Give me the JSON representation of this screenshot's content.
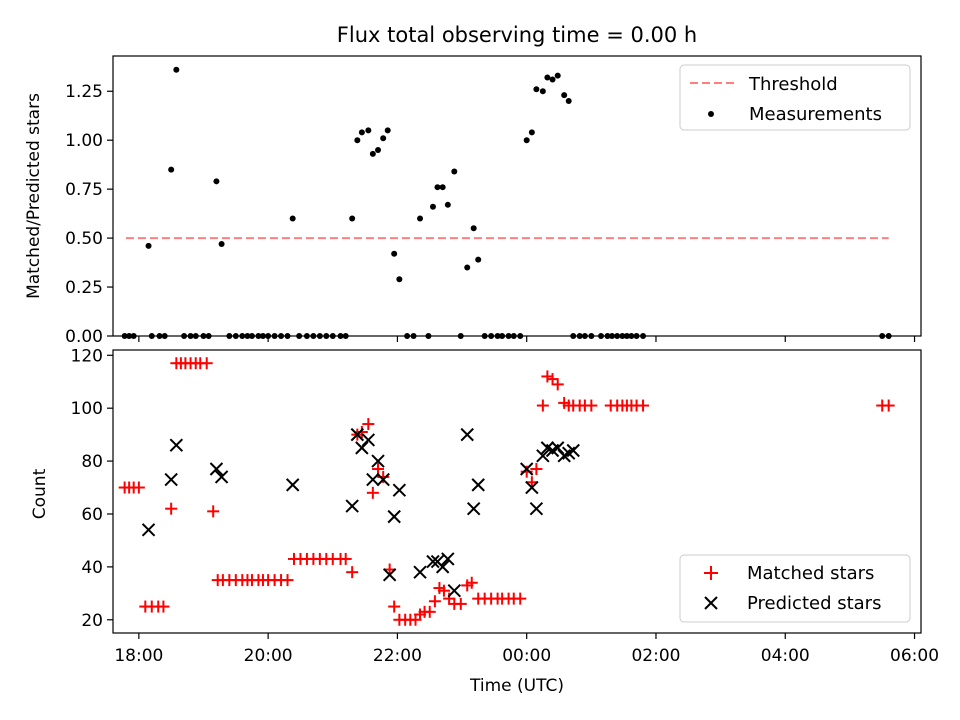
{
  "chart_data": [
    {
      "type": "scatter",
      "title": "Flux total observing time = 0.00 h",
      "xlabel": "",
      "ylabel": "Matched/Predicted stars",
      "ylim": [
        0,
        1.43
      ],
      "yticks": [
        0.0,
        0.25,
        0.5,
        0.75,
        1.0,
        1.25
      ],
      "ytick_labels": [
        "0.00",
        "0.25",
        "0.50",
        "0.75",
        "1.00",
        "1.25"
      ],
      "xlim": [
        17.6,
        30.1
      ],
      "legend": {
        "placement": "top-right",
        "entries": [
          "Threshold",
          "Measurements"
        ]
      },
      "threshold": {
        "name": "Threshold",
        "value": 0.5,
        "x_start": 17.8,
        "x_end": 29.6,
        "color": "#ff7f7f"
      },
      "measurements": {
        "name": "Measurements",
        "color": "#000000",
        "points": [
          [
            17.78,
            0
          ],
          [
            17.85,
            0
          ],
          [
            17.92,
            0
          ],
          [
            18.15,
            0.46
          ],
          [
            18.2,
            0
          ],
          [
            18.32,
            0
          ],
          [
            18.4,
            0
          ],
          [
            18.5,
            0.85
          ],
          [
            18.58,
            1.36
          ],
          [
            18.7,
            0
          ],
          [
            18.8,
            0
          ],
          [
            18.88,
            0
          ],
          [
            19.0,
            0
          ],
          [
            19.08,
            0
          ],
          [
            19.2,
            0.79
          ],
          [
            19.28,
            0.47
          ],
          [
            19.4,
            0
          ],
          [
            19.5,
            0
          ],
          [
            19.6,
            0
          ],
          [
            19.68,
            0
          ],
          [
            19.75,
            0
          ],
          [
            19.85,
            0
          ],
          [
            19.92,
            0
          ],
          [
            20.0,
            0
          ],
          [
            20.1,
            0
          ],
          [
            20.2,
            0
          ],
          [
            20.3,
            0
          ],
          [
            20.38,
            0.6
          ],
          [
            20.48,
            0
          ],
          [
            20.6,
            0
          ],
          [
            20.7,
            0
          ],
          [
            20.8,
            0
          ],
          [
            20.9,
            0
          ],
          [
            21.0,
            0
          ],
          [
            21.12,
            0
          ],
          [
            21.2,
            0
          ],
          [
            21.3,
            0.6
          ],
          [
            21.38,
            1.0
          ],
          [
            21.45,
            1.04
          ],
          [
            21.55,
            1.05
          ],
          [
            21.62,
            0.93
          ],
          [
            21.7,
            0.95
          ],
          [
            21.78,
            1.01
          ],
          [
            21.85,
            1.05
          ],
          [
            21.95,
            0.42
          ],
          [
            22.03,
            0.29
          ],
          [
            22.15,
            0
          ],
          [
            22.25,
            0
          ],
          [
            22.35,
            0.6
          ],
          [
            22.48,
            0
          ],
          [
            22.55,
            0.66
          ],
          [
            22.62,
            0.76
          ],
          [
            22.7,
            0.76
          ],
          [
            22.78,
            0.67
          ],
          [
            22.88,
            0.84
          ],
          [
            22.98,
            0
          ],
          [
            23.08,
            0.35
          ],
          [
            23.18,
            0.55
          ],
          [
            23.25,
            0.39
          ],
          [
            23.35,
            0
          ],
          [
            23.45,
            0
          ],
          [
            23.55,
            0
          ],
          [
            23.62,
            0
          ],
          [
            23.72,
            0
          ],
          [
            23.8,
            0
          ],
          [
            23.9,
            0
          ],
          [
            24.0,
            1.0
          ],
          [
            24.08,
            1.04
          ],
          [
            24.15,
            1.26
          ],
          [
            24.25,
            1.25
          ],
          [
            24.32,
            1.32
          ],
          [
            24.4,
            1.31
          ],
          [
            24.48,
            1.33
          ],
          [
            24.58,
            1.23
          ],
          [
            24.65,
            1.2
          ],
          [
            24.72,
            0
          ],
          [
            24.82,
            0
          ],
          [
            24.9,
            0
          ],
          [
            25.0,
            0
          ],
          [
            25.15,
            0
          ],
          [
            25.25,
            0
          ],
          [
            25.32,
            0
          ],
          [
            25.4,
            0
          ],
          [
            25.48,
            0
          ],
          [
            25.55,
            0
          ],
          [
            25.62,
            0
          ],
          [
            25.7,
            0
          ],
          [
            25.8,
            0
          ],
          [
            29.5,
            0
          ],
          [
            29.6,
            0
          ]
        ]
      }
    },
    {
      "type": "scatter",
      "title": "",
      "xlabel": "Time (UTC)",
      "ylabel": "Count",
      "ylim": [
        15,
        122
      ],
      "yticks": [
        20,
        40,
        60,
        80,
        100,
        120
      ],
      "ytick_labels": [
        "20",
        "40",
        "60",
        "80",
        "100",
        "120"
      ],
      "xlim": [
        17.6,
        30.1
      ],
      "xticks": [
        18,
        20,
        22,
        24,
        26,
        28,
        30
      ],
      "xtick_labels": [
        "18:00",
        "20:00",
        "22:00",
        "00:00",
        "02:00",
        "04:00",
        "06:00"
      ],
      "legend": {
        "placement": "bottom-right",
        "entries": [
          "Matched stars",
          "Predicted stars"
        ]
      },
      "series": [
        {
          "name": "Matched stars",
          "marker": "plus",
          "color": "#ff0000",
          "points": [
            [
              17.78,
              70
            ],
            [
              17.85,
              70
            ],
            [
              17.92,
              70
            ],
            [
              18.0,
              70
            ],
            [
              18.1,
              25
            ],
            [
              18.2,
              25
            ],
            [
              18.3,
              25
            ],
            [
              18.38,
              25
            ],
            [
              18.5,
              62
            ],
            [
              18.58,
              117
            ],
            [
              18.65,
              117
            ],
            [
              18.72,
              117
            ],
            [
              18.8,
              117
            ],
            [
              18.88,
              117
            ],
            [
              18.95,
              117
            ],
            [
              19.05,
              117
            ],
            [
              19.15,
              61
            ],
            [
              19.22,
              35
            ],
            [
              19.3,
              35
            ],
            [
              19.4,
              35
            ],
            [
              19.5,
              35
            ],
            [
              19.6,
              35
            ],
            [
              19.68,
              35
            ],
            [
              19.75,
              35
            ],
            [
              19.85,
              35
            ],
            [
              19.92,
              35
            ],
            [
              20.0,
              35
            ],
            [
              20.1,
              35
            ],
            [
              20.2,
              35
            ],
            [
              20.3,
              35
            ],
            [
              20.4,
              43
            ],
            [
              20.5,
              43
            ],
            [
              20.6,
              43
            ],
            [
              20.7,
              43
            ],
            [
              20.8,
              43
            ],
            [
              20.9,
              43
            ],
            [
              21.0,
              43
            ],
            [
              21.12,
              43
            ],
            [
              21.2,
              43
            ],
            [
              21.3,
              38
            ],
            [
              21.38,
              90
            ],
            [
              21.45,
              91
            ],
            [
              21.55,
              94
            ],
            [
              21.62,
              68
            ],
            [
              21.7,
              77
            ],
            [
              21.78,
              74
            ],
            [
              21.88,
              39
            ],
            [
              21.95,
              25
            ],
            [
              22.03,
              20
            ],
            [
              22.12,
              20
            ],
            [
              22.2,
              20
            ],
            [
              22.28,
              20
            ],
            [
              22.35,
              22
            ],
            [
              22.42,
              23
            ],
            [
              22.5,
              23
            ],
            [
              22.58,
              27
            ],
            [
              22.65,
              32
            ],
            [
              22.72,
              31
            ],
            [
              22.8,
              28
            ],
            [
              22.88,
              26
            ],
            [
              22.98,
              26
            ],
            [
              23.08,
              33
            ],
            [
              23.15,
              34
            ],
            [
              23.25,
              28
            ],
            [
              23.35,
              28
            ],
            [
              23.45,
              28
            ],
            [
              23.55,
              28
            ],
            [
              23.62,
              28
            ],
            [
              23.72,
              28
            ],
            [
              23.8,
              28
            ],
            [
              23.9,
              28
            ],
            [
              24.0,
              76
            ],
            [
              24.08,
              72
            ],
            [
              24.15,
              77
            ],
            [
              24.25,
              101
            ],
            [
              24.32,
              112
            ],
            [
              24.4,
              111
            ],
            [
              24.48,
              109
            ],
            [
              24.58,
              102
            ],
            [
              24.65,
              101
            ],
            [
              24.72,
              101
            ],
            [
              24.82,
              101
            ],
            [
              24.9,
              101
            ],
            [
              25.0,
              101
            ],
            [
              25.3,
              101
            ],
            [
              25.4,
              101
            ],
            [
              25.48,
              101
            ],
            [
              25.55,
              101
            ],
            [
              25.62,
              101
            ],
            [
              25.7,
              101
            ],
            [
              25.8,
              101
            ],
            [
              29.5,
              101
            ],
            [
              29.6,
              101
            ]
          ]
        },
        {
          "name": "Predicted stars",
          "marker": "x",
          "color": "#000000",
          "points": [
            [
              18.15,
              54
            ],
            [
              18.5,
              73
            ],
            [
              18.58,
              86
            ],
            [
              19.2,
              77
            ],
            [
              19.28,
              74
            ],
            [
              20.38,
              71
            ],
            [
              21.3,
              63
            ],
            [
              21.38,
              90
            ],
            [
              21.45,
              85
            ],
            [
              21.55,
              88
            ],
            [
              21.62,
              73
            ],
            [
              21.7,
              80
            ],
            [
              21.78,
              73
            ],
            [
              21.88,
              37
            ],
            [
              21.95,
              59
            ],
            [
              22.03,
              69
            ],
            [
              22.35,
              38
            ],
            [
              22.55,
              42
            ],
            [
              22.62,
              42
            ],
            [
              22.7,
              40
            ],
            [
              22.78,
              43
            ],
            [
              22.88,
              31
            ],
            [
              23.08,
              90
            ],
            [
              23.18,
              62
            ],
            [
              23.25,
              71
            ],
            [
              24.0,
              77
            ],
            [
              24.08,
              70
            ],
            [
              24.15,
              62
            ],
            [
              24.25,
              82
            ],
            [
              24.32,
              85
            ],
            [
              24.4,
              84
            ],
            [
              24.48,
              85
            ],
            [
              24.58,
              82
            ],
            [
              24.65,
              83
            ],
            [
              24.72,
              84
            ]
          ]
        }
      ]
    }
  ]
}
